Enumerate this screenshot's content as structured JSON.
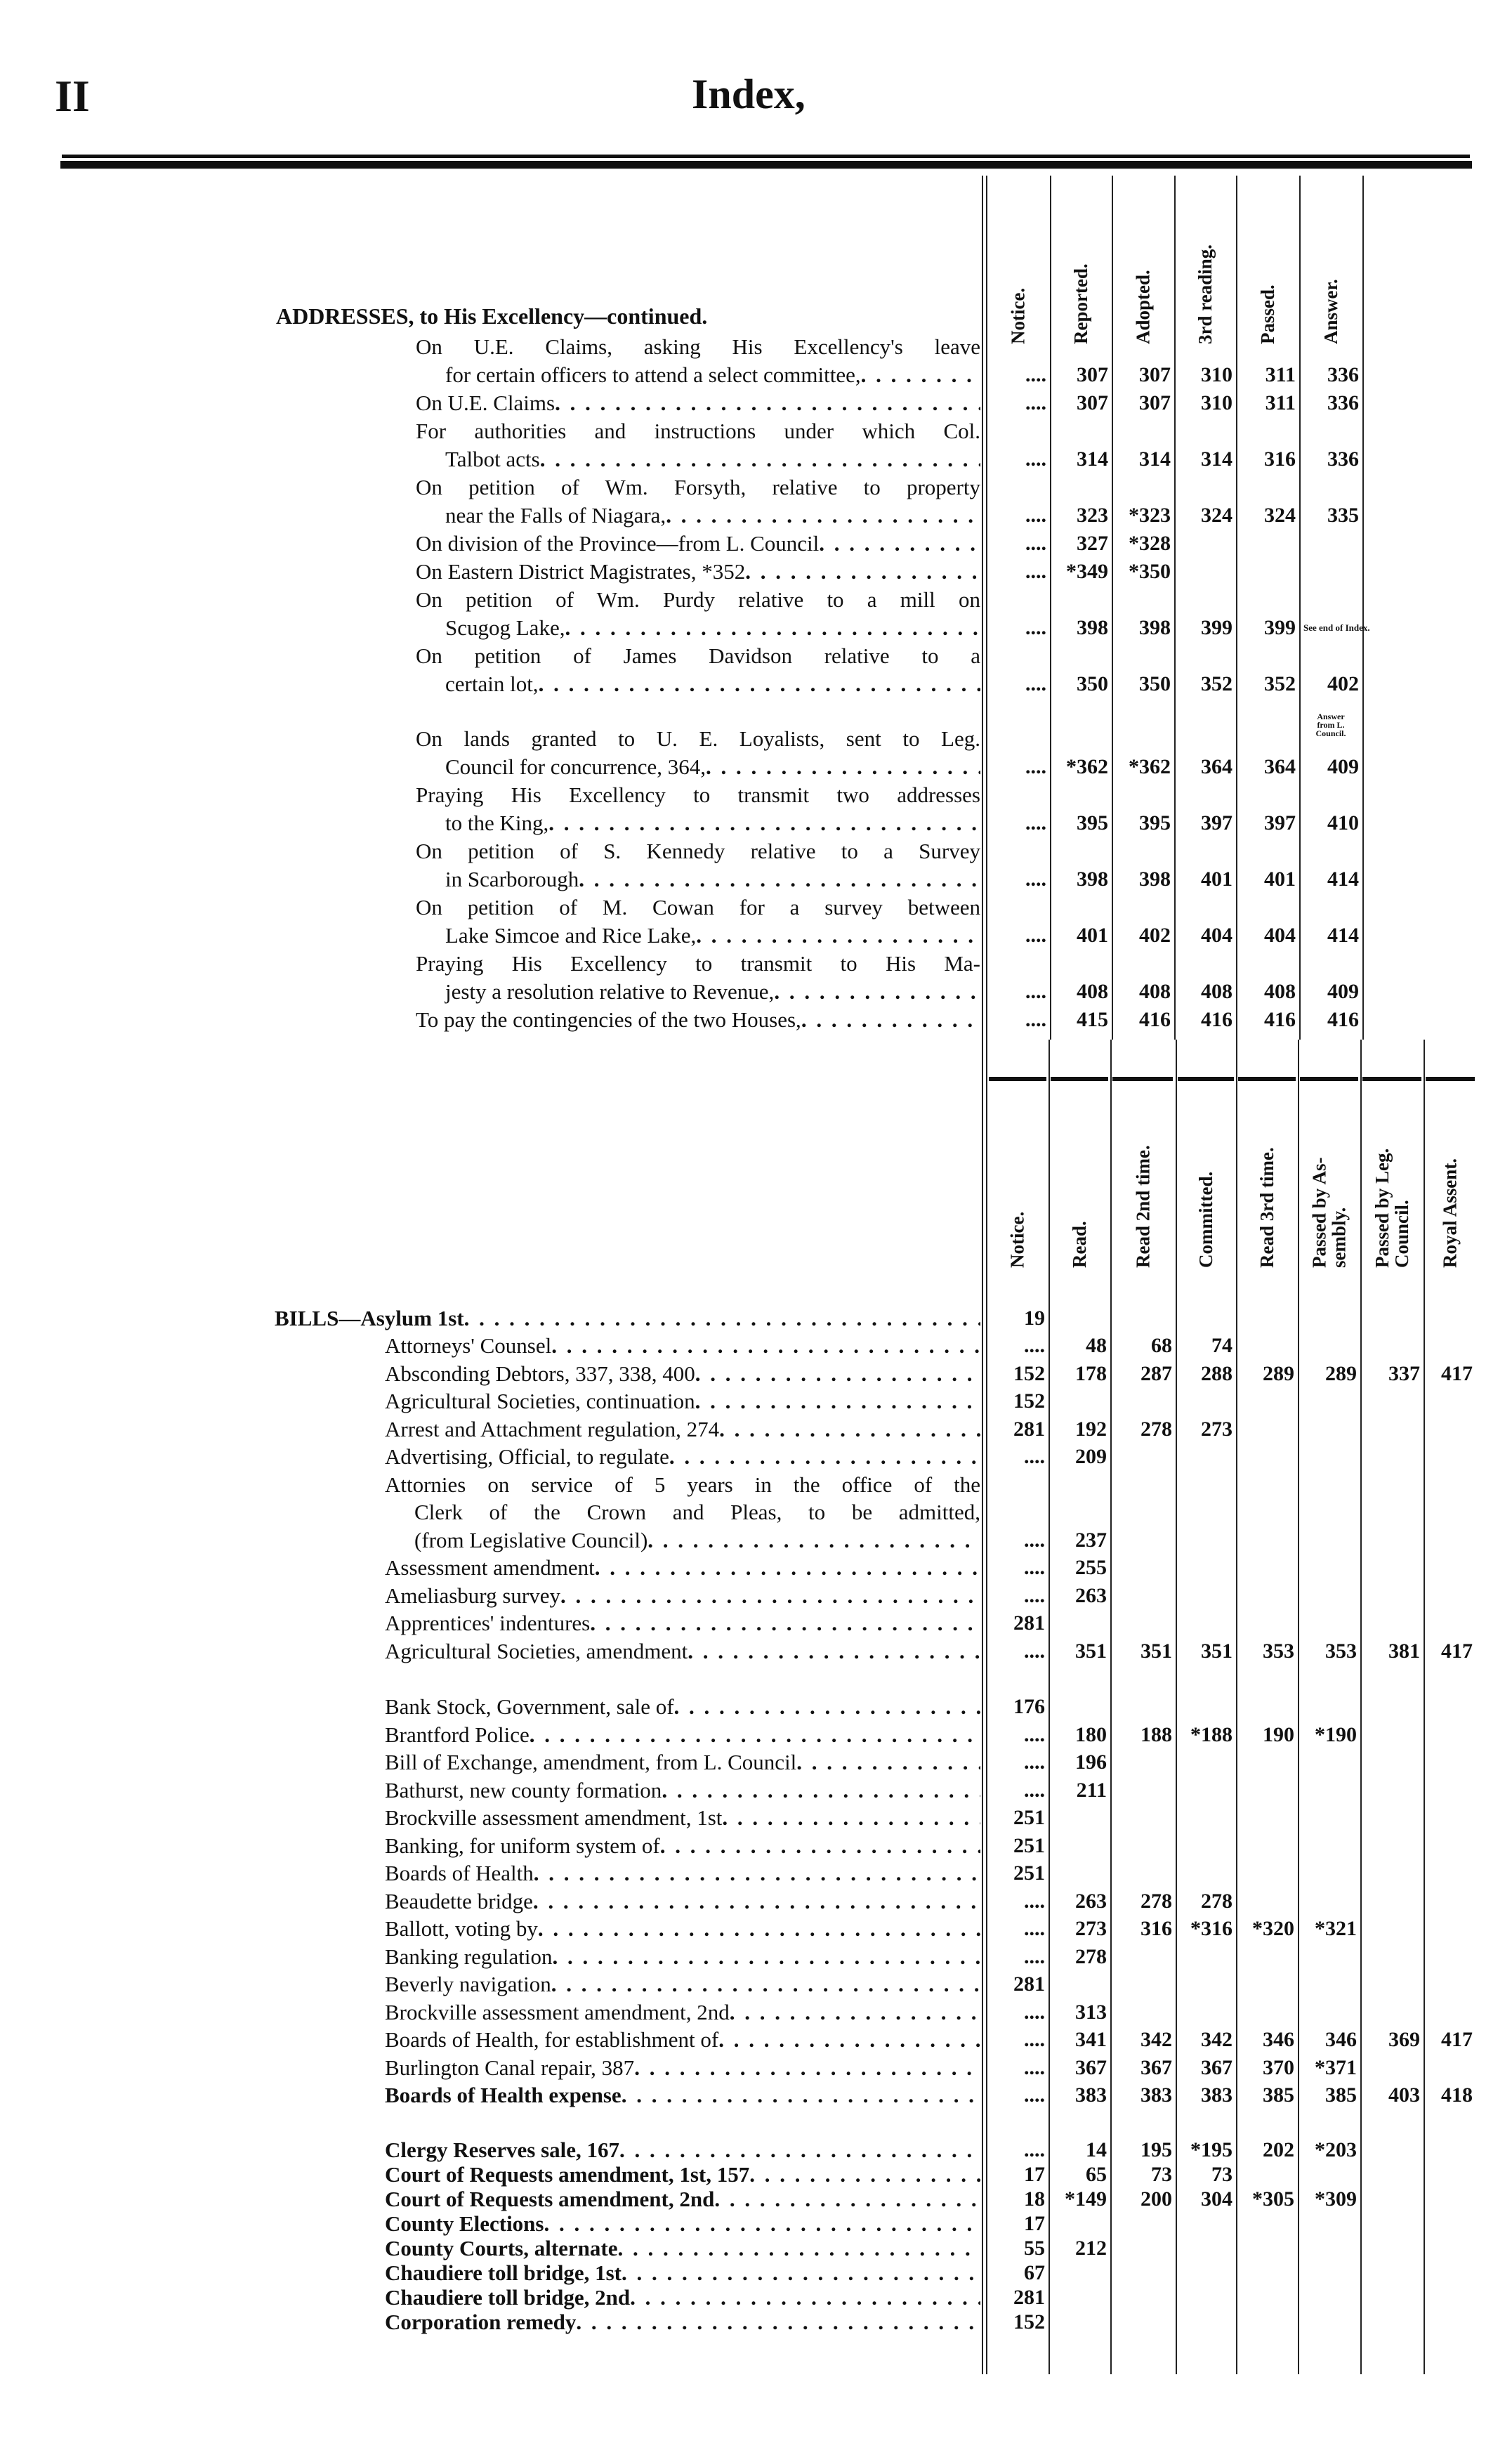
{
  "header": {
    "page_number": "II",
    "title": "Index,"
  },
  "addresses": {
    "heading": "ADDRESSES, to His Excellency—continued.",
    "columns": [
      "Notice.",
      "Reported.",
      "Adopted.",
      "3rd reading.",
      "Passed.",
      "Answer."
    ],
    "rows": [
      {
        "lines": [
          "On U.E. Claims, asking His Excellency's leave",
          "for certain officers to attend a select committee,"
        ],
        "values": [
          "....",
          "307",
          "307",
          "310",
          "311",
          "336"
        ]
      },
      {
        "lines": [
          "On U.E. Claims"
        ],
        "values": [
          "....",
          "307",
          "307",
          "310",
          "311",
          "336"
        ]
      },
      {
        "lines": [
          "For authorities and instructions under which Col.",
          "Talbot acts"
        ],
        "values": [
          "....",
          "314",
          "314",
          "314",
          "316",
          "336"
        ]
      },
      {
        "lines": [
          "On petition of Wm. Forsyth, relative to property",
          "near the Falls of Niagara,"
        ],
        "values": [
          "....",
          "323",
          "*323",
          "324",
          "324",
          "335"
        ]
      },
      {
        "lines": [
          "On division of the Province—from L. Council"
        ],
        "values": [
          "....",
          "327",
          "*328",
          "",
          "",
          ""
        ]
      },
      {
        "lines": [
          "On Eastern District Magistrates, *352"
        ],
        "values": [
          "....",
          "*349",
          "*350",
          "",
          "",
          ""
        ]
      },
      {
        "lines": [
          "On petition of Wm. Purdy relative to a mill on",
          "Scugog Lake,"
        ],
        "values": [
          "....",
          "398",
          "398",
          "399",
          "399",
          "See end of Index."
        ]
      },
      {
        "lines": [
          "On petition of James Davidson relative to a",
          "certain lot,"
        ],
        "values": [
          "....",
          "350",
          "350",
          "352",
          "352",
          "402"
        ]
      },
      {
        "lines": [
          "On lands granted to U. E. Loyalists, sent to Leg.",
          "Council for concurrence, 364,"
        ],
        "values": [
          "....",
          "*362",
          "*362",
          "364",
          "364",
          "409"
        ],
        "note": "Answer\nfrom L.\nCouncil."
      },
      {
        "lines": [
          "Praying His Excellency to transmit two addresses",
          "to the King,"
        ],
        "values": [
          "....",
          "395",
          "395",
          "397",
          "397",
          "410"
        ]
      },
      {
        "lines": [
          "On petition of S. Kennedy relative to a Survey",
          "in Scarborough"
        ],
        "values": [
          "....",
          "398",
          "398",
          "401",
          "401",
          "414"
        ]
      },
      {
        "lines": [
          "On petition of M. Cowan for a survey between",
          "Lake Simcoe and Rice Lake,"
        ],
        "values": [
          "....",
          "401",
          "402",
          "404",
          "404",
          "414"
        ]
      },
      {
        "lines": [
          "Praying His Excellency to transmit to His Ma-",
          "jesty a resolution relative to Revenue,"
        ],
        "values": [
          "....",
          "408",
          "408",
          "408",
          "408",
          "409"
        ]
      },
      {
        "lines": [
          "To pay the contingencies of the two Houses,"
        ],
        "values": [
          "....",
          "415",
          "416",
          "416",
          "416",
          "416"
        ]
      }
    ]
  },
  "bills": {
    "columns": [
      "Notice.",
      "Read.",
      "Read 2nd time.",
      "Committed.",
      "Read 3rd time.",
      "Passed by As-\nsembly.",
      "Passed by Leg.\nCouncil.",
      "Royal Assent."
    ],
    "rows": [
      {
        "lines": [
          "BILLS—Asylum 1st"
        ],
        "values": [
          "19"
        ],
        "bold": true,
        "heading": true
      },
      {
        "lines": [
          "Attorneys' Counsel"
        ],
        "values": [
          "....",
          "48",
          "68",
          "74"
        ]
      },
      {
        "lines": [
          "Absconding Debtors, 337, 338, 400"
        ],
        "values": [
          "152",
          "178",
          "287",
          "288",
          "289",
          "289",
          "337",
          "417"
        ]
      },
      {
        "lines": [
          "Agricultural Societies, continuation"
        ],
        "values": [
          "152"
        ]
      },
      {
        "lines": [
          "Arrest and Attachment regulation, 274"
        ],
        "values": [
          "281",
          "192",
          "278",
          "273"
        ]
      },
      {
        "lines": [
          "Advertising, Official, to regulate"
        ],
        "values": [
          "....",
          "209"
        ]
      },
      {
        "lines": [
          "Attornies on service of 5 years in the office of the",
          "Clerk of the Crown and Pleas, to be admitted,",
          "(from Legislative Council)"
        ],
        "values": [
          "....",
          "237"
        ]
      },
      {
        "lines": [
          "Assessment amendment"
        ],
        "values": [
          "....",
          "255"
        ]
      },
      {
        "lines": [
          "Ameliasburg survey"
        ],
        "values": [
          "....",
          "263"
        ]
      },
      {
        "lines": [
          "Apprentices' indentures"
        ],
        "values": [
          "281"
        ]
      },
      {
        "lines": [
          "Agricultural Societies, amendment"
        ],
        "values": [
          "....",
          "351",
          "351",
          "351",
          "353",
          "353",
          "381",
          "417"
        ]
      },
      {
        "lines": [
          "Bank Stock, Government, sale of"
        ],
        "values": [
          "176"
        ]
      },
      {
        "lines": [
          "Brantford Police"
        ],
        "values": [
          "....",
          "180",
          "188",
          "*188",
          "190",
          "*190"
        ]
      },
      {
        "lines": [
          "Bill of Exchange, amendment, from L. Council"
        ],
        "values": [
          "....",
          "196"
        ]
      },
      {
        "lines": [
          "Bathurst, new county formation"
        ],
        "values": [
          "....",
          "211"
        ]
      },
      {
        "lines": [
          "Brockville assessment amendment, 1st"
        ],
        "values": [
          "251"
        ]
      },
      {
        "lines": [
          "Banking, for uniform system of"
        ],
        "values": [
          "251"
        ]
      },
      {
        "lines": [
          "Boards of Health"
        ],
        "values": [
          "251"
        ]
      },
      {
        "lines": [
          "Beaudette bridge"
        ],
        "values": [
          "....",
          "263",
          "278",
          "278"
        ]
      },
      {
        "lines": [
          "Ballott, voting by"
        ],
        "values": [
          "....",
          "273",
          "316",
          "*316",
          "*320",
          "*321"
        ]
      },
      {
        "lines": [
          "Banking regulation"
        ],
        "values": [
          "....",
          "278"
        ]
      },
      {
        "lines": [
          "Beverly navigation"
        ],
        "values": [
          "281"
        ]
      },
      {
        "lines": [
          "Brockville assessment amendment, 2nd"
        ],
        "values": [
          "....",
          "313"
        ]
      },
      {
        "lines": [
          "Boards of Health, for establishment of"
        ],
        "values": [
          "....",
          "341",
          "342",
          "342",
          "346",
          "346",
          "369",
          "417"
        ]
      },
      {
        "lines": [
          "Burlington Canal repair, 387"
        ],
        "values": [
          "....",
          "367",
          "367",
          "367",
          "370",
          "*371"
        ]
      },
      {
        "lines": [
          "Boards of Health expense"
        ],
        "values": [
          "....",
          "383",
          "383",
          "383",
          "385",
          "385",
          "403",
          "418"
        ],
        "bold": true
      },
      {
        "lines": [
          "Clergy Reserves sale, 167"
        ],
        "values": [
          "....",
          "14",
          "195",
          "*195",
          "202",
          "*203"
        ],
        "bold": true
      },
      {
        "lines": [
          "Court of Requests amendment, 1st, 157"
        ],
        "values": [
          "17",
          "65",
          "73",
          "73"
        ],
        "bold": true
      },
      {
        "lines": [
          "Court of Requests amendment, 2nd"
        ],
        "values": [
          "18",
          "*149",
          "200",
          "304",
          "*305",
          "*309"
        ],
        "bold": true
      },
      {
        "lines": [
          "County Elections"
        ],
        "values": [
          "17"
        ],
        "bold": true
      },
      {
        "lines": [
          "County Courts, alternate"
        ],
        "values": [
          "55",
          "212"
        ],
        "bold": true
      },
      {
        "lines": [
          "Chaudiere toll bridge, 1st"
        ],
        "values": [
          "67"
        ],
        "bold": true
      },
      {
        "lines": [
          "Chaudiere toll bridge, 2nd"
        ],
        "values": [
          "281"
        ],
        "bold": true
      },
      {
        "lines": [
          "Corporation remedy"
        ],
        "values": [
          "152"
        ],
        "bold": true
      }
    ]
  }
}
